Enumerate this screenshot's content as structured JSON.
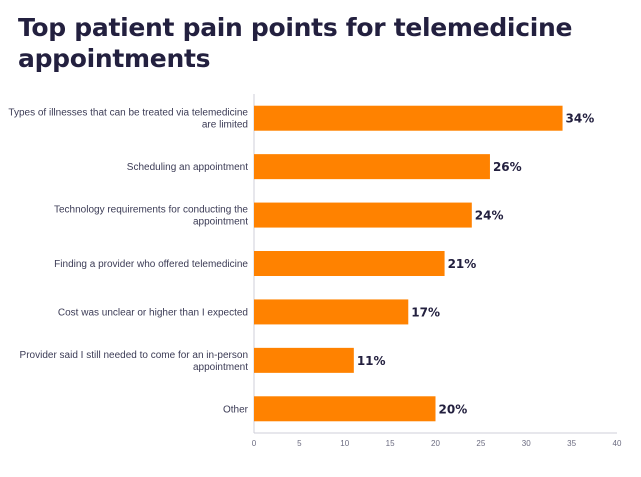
{
  "chart_data": {
    "type": "bar",
    "orientation": "horizontal",
    "title": "Top patient pain points for telemedicine appointments",
    "categories": [
      "Types of illnesses that can be treated via telemedicine are limited",
      "Scheduling an appointment",
      "Technology requirements for conducting the appointment",
      "Finding a provider who offered telemedicine",
      "Cost was unclear or higher than I expected",
      "Provider said I still needed to come for an in-person appointment",
      "Other"
    ],
    "category_lines": [
      [
        "Types of illnesses that can be treated via telemedicine",
        "are limited"
      ],
      [
        "Scheduling an appointment"
      ],
      [
        "Technology requirements for conducting the",
        "appointment"
      ],
      [
        "Finding a provider who offered telemedicine"
      ],
      [
        "Cost was unclear or higher than I expected"
      ],
      [
        "Provider said I still needed to come for an in-person",
        "appointment"
      ],
      [
        "Other"
      ]
    ],
    "values": [
      34,
      26,
      24,
      21,
      17,
      11,
      20
    ],
    "value_labels": [
      "34%",
      "26%",
      "24%",
      "21%",
      "17%",
      "11%",
      "20%"
    ],
    "xlim": [
      0,
      40
    ],
    "xticks": [
      0,
      5,
      10,
      15,
      20,
      25,
      30,
      35,
      40
    ],
    "xlabel": "",
    "ylabel": "",
    "grid": false,
    "legend": "none",
    "bar_color": "#ff8200",
    "axis_color": "#cfcfd8"
  }
}
